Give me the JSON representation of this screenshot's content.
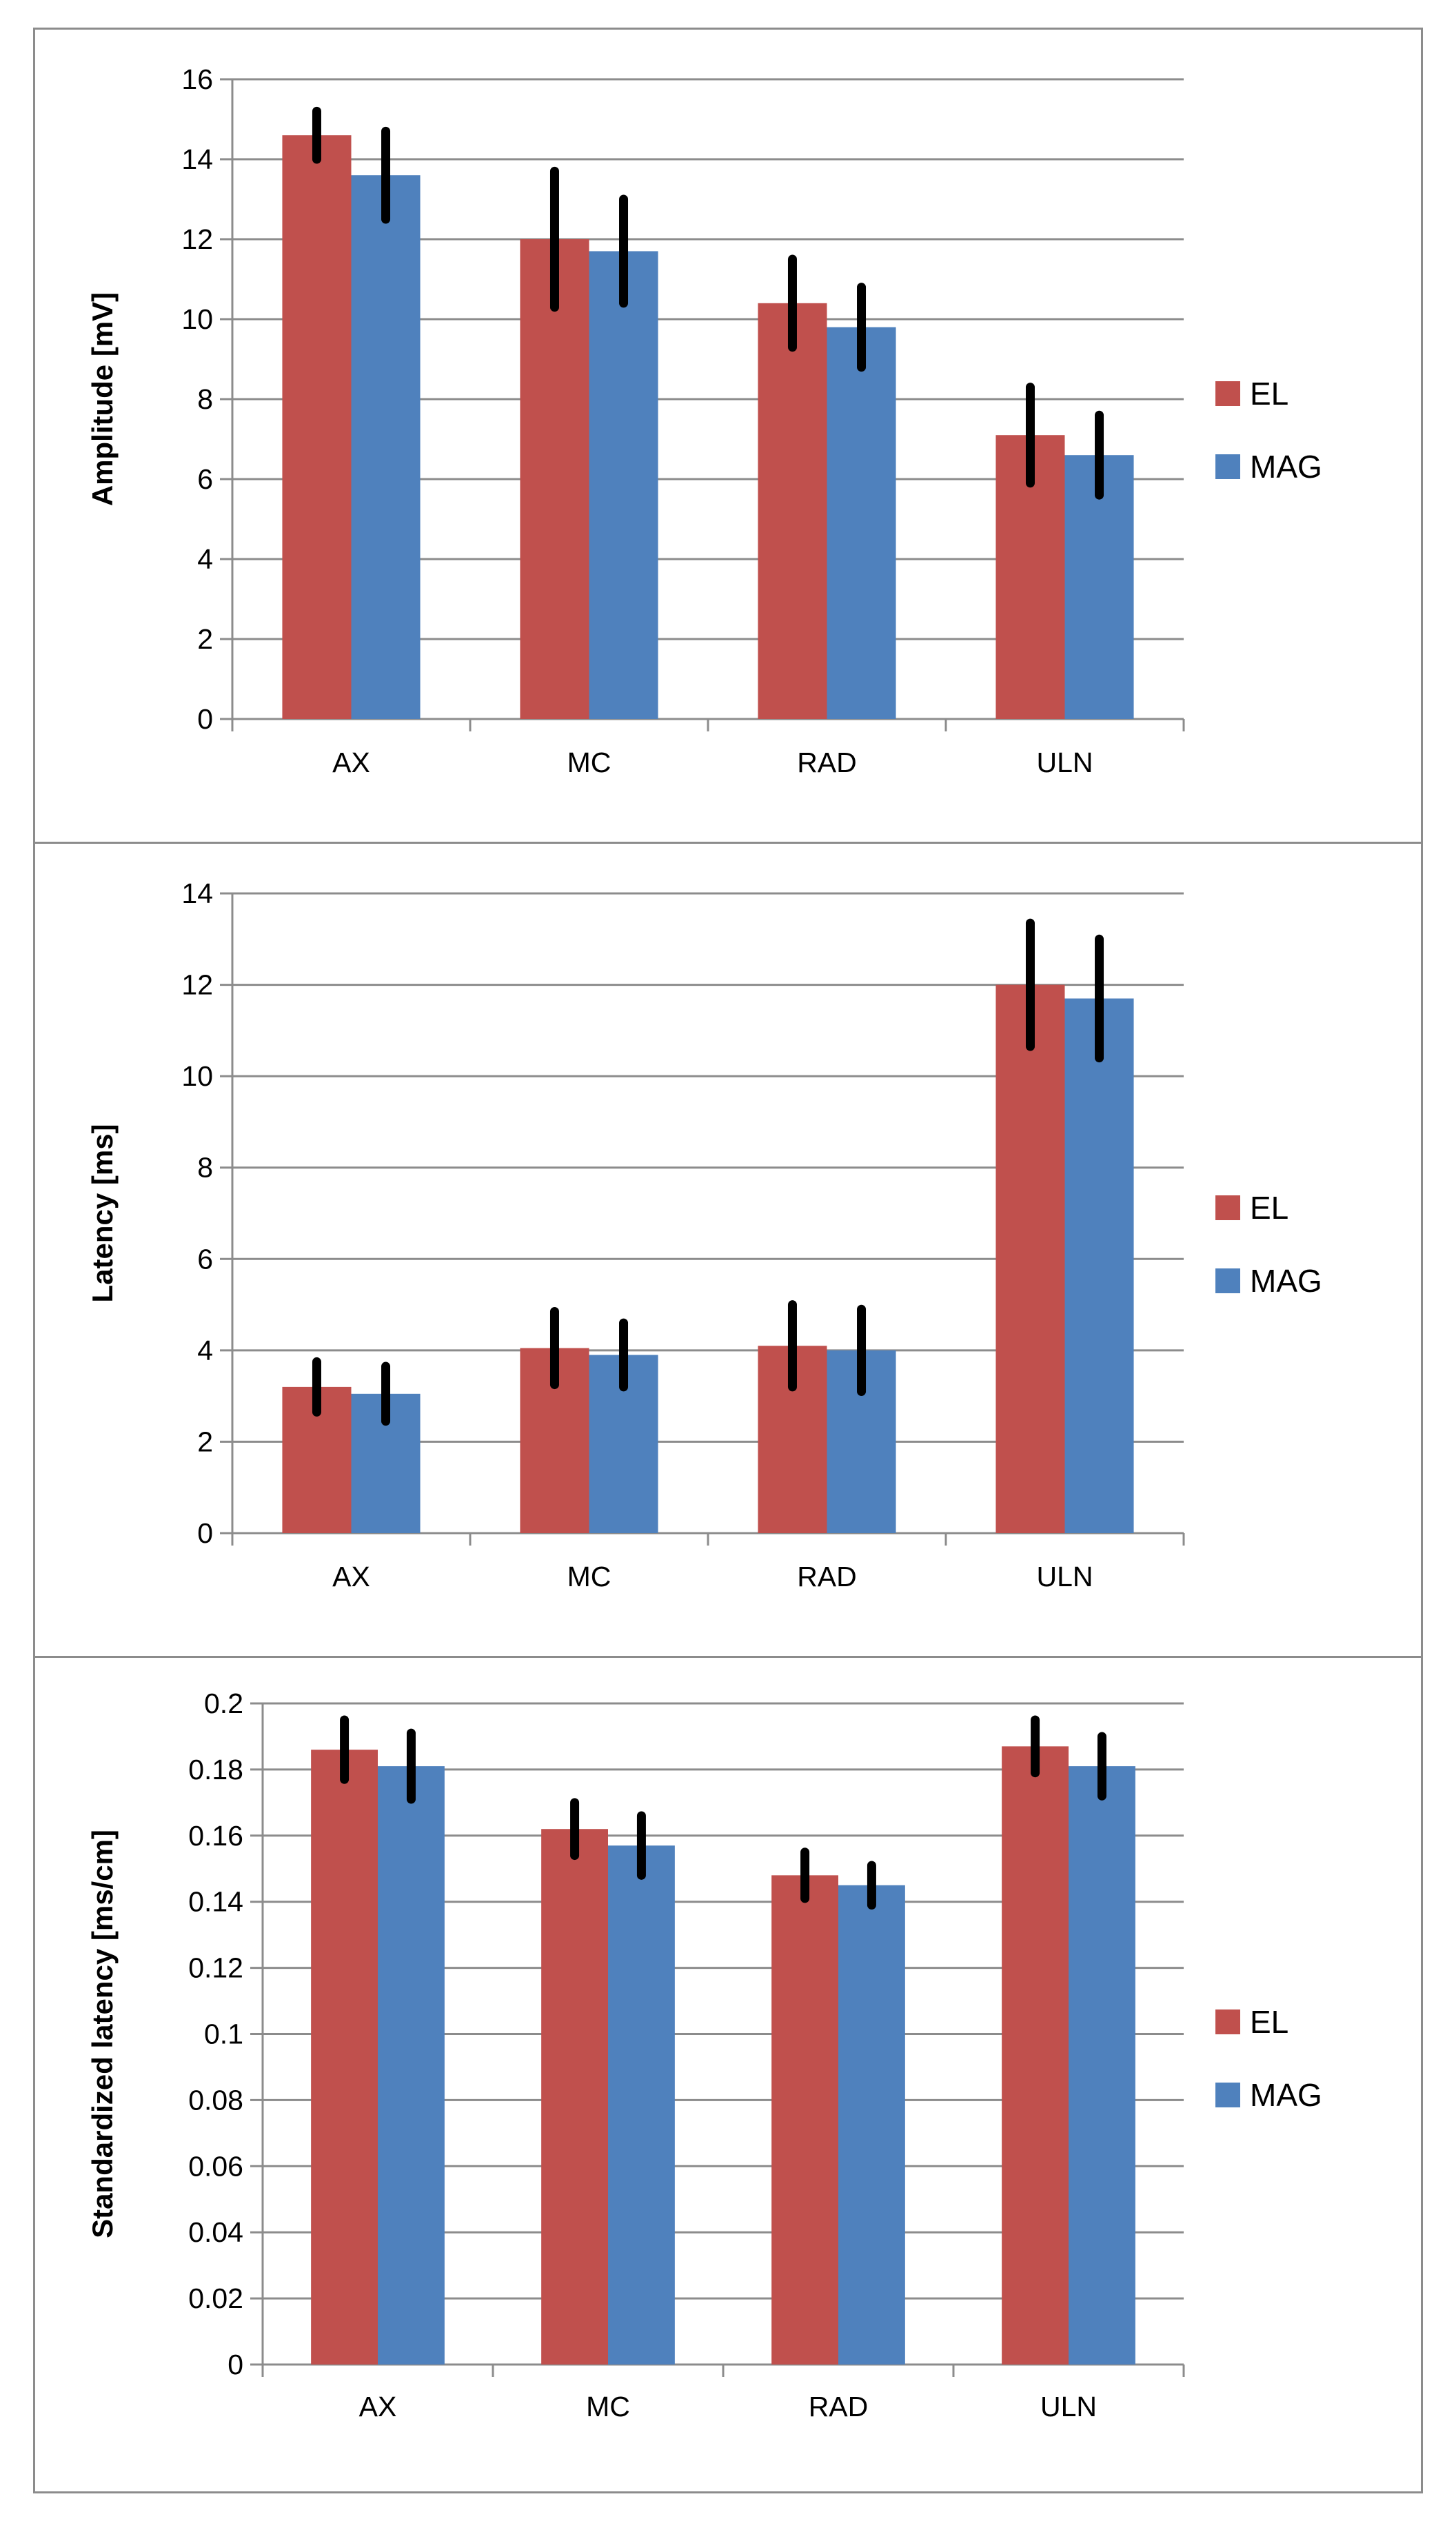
{
  "chart_data": [
    {
      "type": "bar",
      "ylabel": "Amplitude [mV]",
      "xlabel": "",
      "categories": [
        "AX",
        "MC",
        "RAD",
        "ULN"
      ],
      "ylim": [
        0,
        16
      ],
      "yticks": [
        "0",
        "2",
        "4",
        "6",
        "8",
        "10",
        "12",
        "14",
        "16"
      ],
      "yticks_values": [
        0,
        2,
        4,
        6,
        8,
        10,
        12,
        14,
        16
      ],
      "grid": true,
      "legend_position": "right",
      "series": [
        {
          "name": "EL",
          "color": "#c0504d",
          "values": [
            14.6,
            12.0,
            10.4,
            7.1
          ],
          "error": [
            0.6,
            1.7,
            1.1,
            1.2
          ]
        },
        {
          "name": "MAG",
          "color": "#4f81bd",
          "values": [
            13.6,
            11.7,
            9.8,
            6.6
          ],
          "error": [
            1.1,
            1.3,
            1.0,
            1.0
          ]
        }
      ]
    },
    {
      "type": "bar",
      "ylabel": "Latency [ms]",
      "xlabel": "",
      "categories": [
        "AX",
        "MC",
        "RAD",
        "ULN"
      ],
      "ylim": [
        0,
        14
      ],
      "yticks": [
        "0",
        "2",
        "4",
        "6",
        "8",
        "10",
        "12",
        "14"
      ],
      "yticks_values": [
        0,
        2,
        4,
        6,
        8,
        10,
        12,
        14
      ],
      "grid": true,
      "legend_position": "right",
      "series": [
        {
          "name": "EL",
          "color": "#c0504d",
          "values": [
            3.2,
            4.05,
            4.1,
            12.0
          ],
          "error": [
            0.55,
            0.8,
            0.9,
            1.35
          ]
        },
        {
          "name": "MAG",
          "color": "#4f81bd",
          "values": [
            3.05,
            3.9,
            4.0,
            11.7
          ],
          "error": [
            0.6,
            0.7,
            0.9,
            1.3
          ]
        }
      ]
    },
    {
      "type": "bar",
      "ylabel": "Standardized latency [ms/cm]",
      "xlabel": "",
      "categories": [
        "AX",
        "MC",
        "RAD",
        "ULN"
      ],
      "ylim": [
        0,
        0.2
      ],
      "yticks": [
        "0",
        "0.02",
        "0.04",
        "0.06",
        "0.08",
        "0.1",
        "0.12",
        "0.14",
        "0.16",
        "0.18",
        "0.2"
      ],
      "yticks_values": [
        0,
        0.02,
        0.04,
        0.06,
        0.08,
        0.1,
        0.12,
        0.14,
        0.16,
        0.18,
        0.2
      ],
      "grid": true,
      "legend_position": "right",
      "series": [
        {
          "name": "EL",
          "color": "#c0504d",
          "values": [
            0.186,
            0.162,
            0.148,
            0.187
          ],
          "error": [
            0.009,
            0.008,
            0.007,
            0.008
          ]
        },
        {
          "name": "MAG",
          "color": "#4f81bd",
          "values": [
            0.181,
            0.157,
            0.145,
            0.181
          ],
          "error": [
            0.01,
            0.009,
            0.006,
            0.009
          ]
        }
      ]
    }
  ]
}
